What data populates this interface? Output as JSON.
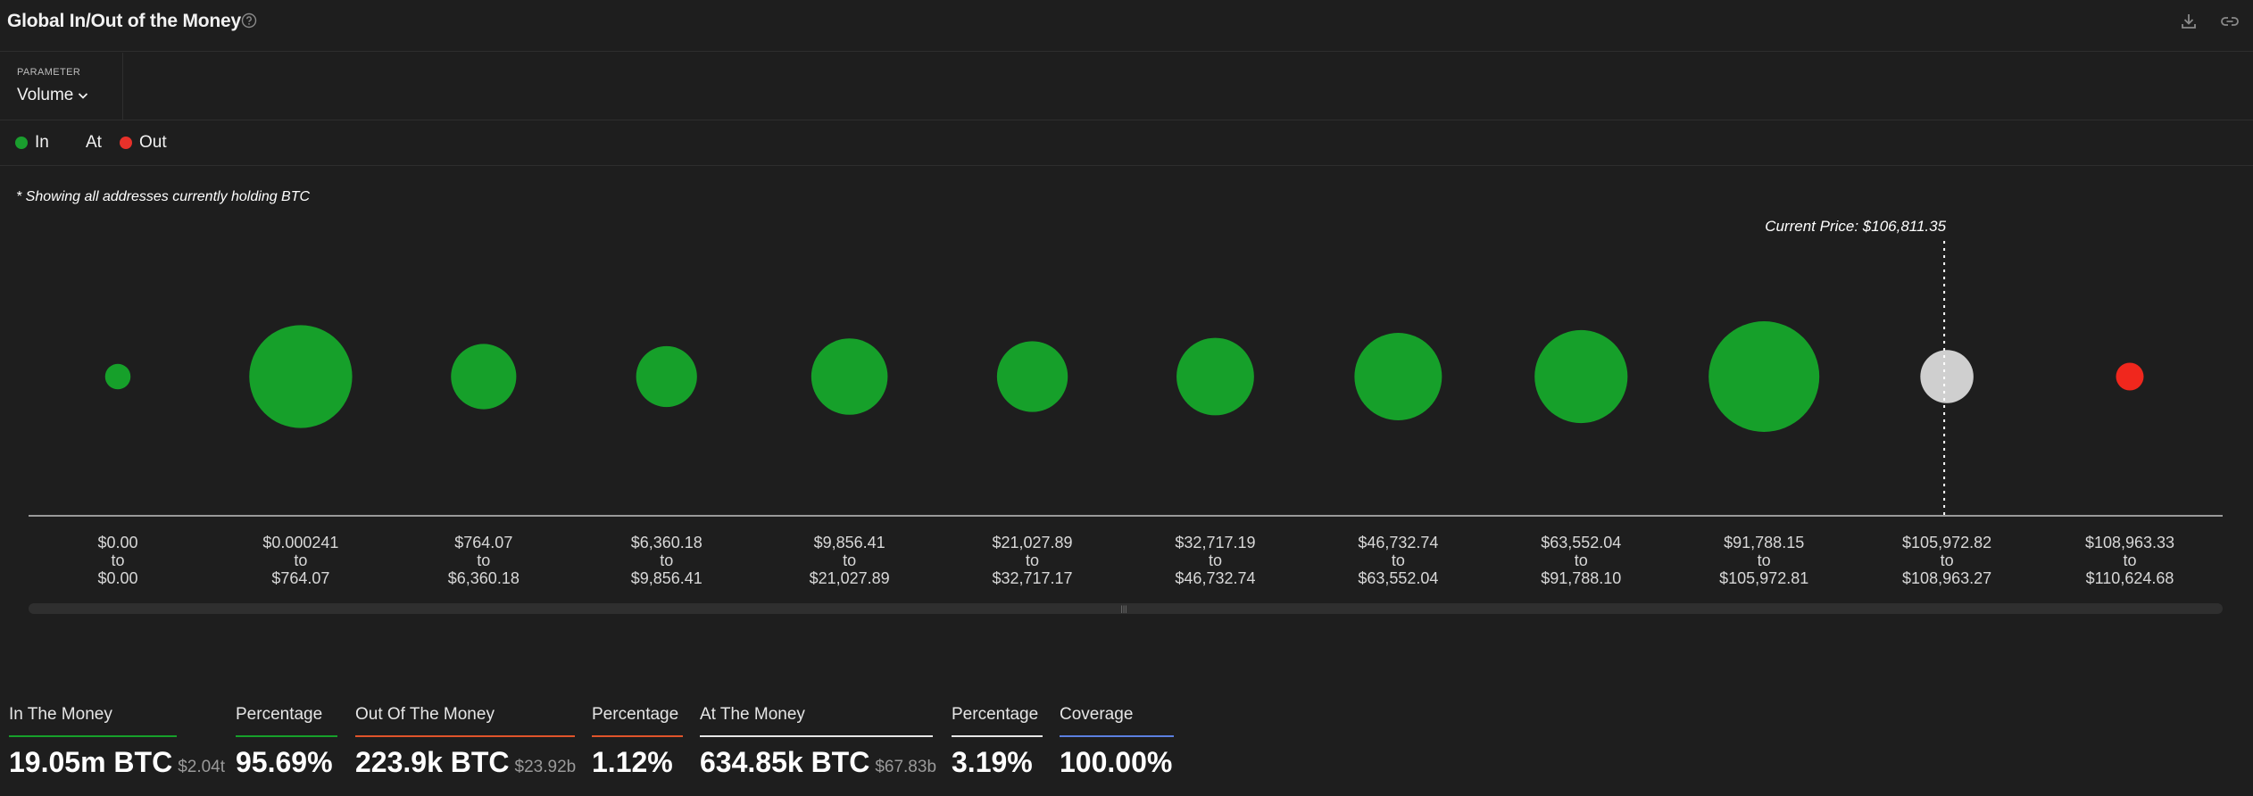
{
  "header": {
    "title": "Global In/Out of the Money"
  },
  "parameter": {
    "label": "PARAMETER",
    "value": "Volume"
  },
  "legend": [
    {
      "label": "In",
      "color": "#1a9e2e"
    },
    {
      "label": "At",
      "color": null
    },
    {
      "label": "Out",
      "color": "#e8312a"
    }
  ],
  "note": "* Showing all addresses currently holding BTC",
  "current_price_label": "Current Price: $106,811.35",
  "colors": {
    "in": "#16a02a",
    "at": "#cfcfcf",
    "out": "#f0271d",
    "axis": "#9a9a9a",
    "underline_in": "#16a02a",
    "underline_out": "#e0542a",
    "underline_at": "#e6e6e6",
    "underline_coverage": "#5b7fe0"
  },
  "chart_data": {
    "type": "scatter",
    "title": "Global In/Out of the Money",
    "parameter": "Volume",
    "bins": [
      {
        "from": "$0.00",
        "to": "$0.00",
        "status": "in",
        "relative_size": 0.23
      },
      {
        "from": "$0.000241",
        "to": "$764.07",
        "status": "in",
        "relative_size": 0.93
      },
      {
        "from": "$764.07",
        "to": "$6,360.18",
        "status": "in",
        "relative_size": 0.59
      },
      {
        "from": "$6,360.18",
        "to": "$9,856.41",
        "status": "in",
        "relative_size": 0.55
      },
      {
        "from": "$9,856.41",
        "to": "$21,027.89",
        "status": "in",
        "relative_size": 0.69
      },
      {
        "from": "$21,027.89",
        "to": "$32,717.17",
        "status": "in",
        "relative_size": 0.64
      },
      {
        "from": "$32,717.19",
        "to": "$46,732.74",
        "status": "in",
        "relative_size": 0.7
      },
      {
        "from": "$46,732.74",
        "to": "$63,552.04",
        "status": "in",
        "relative_size": 0.79
      },
      {
        "from": "$63,552.04",
        "to": "$91,788.10",
        "status": "in",
        "relative_size": 0.84
      },
      {
        "from": "$91,788.15",
        "to": "$105,972.81",
        "status": "in",
        "relative_size": 1.0
      },
      {
        "from": "$105,972.82",
        "to": "$108,963.27",
        "status": "at",
        "relative_size": 0.48
      },
      {
        "from": "$108,963.33",
        "to": "$110,624.68",
        "status": "out",
        "relative_size": 0.25
      }
    ],
    "current_price": 106811.35,
    "current_price_bin_index": 10,
    "to_word": "to"
  },
  "stats": [
    {
      "label": "In The Money",
      "value": "19.05m BTC",
      "sub": "$2.04t",
      "underline": "#16a02a"
    },
    {
      "label": "Percentage",
      "value": "95.69%",
      "sub": "",
      "underline": "#16a02a"
    },
    {
      "label": "Out Of The Money",
      "value": "223.9k BTC",
      "sub": "$23.92b",
      "underline": "#e0542a"
    },
    {
      "label": "Percentage",
      "value": "1.12%",
      "sub": "",
      "underline": "#e0542a"
    },
    {
      "label": "At The Money",
      "value": "634.85k BTC",
      "sub": "$67.83b",
      "underline": "#e6e6e6"
    },
    {
      "label": "Percentage",
      "value": "3.19%",
      "sub": "",
      "underline": "#e6e6e6"
    },
    {
      "label": "Coverage",
      "value": "100.00%",
      "sub": "",
      "underline": "#5b7fe0"
    }
  ]
}
